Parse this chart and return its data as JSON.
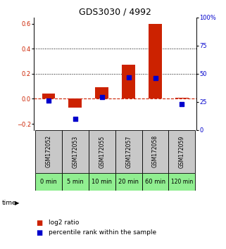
{
  "title": "GDS3030 / 4992",
  "samples": [
    "GSM172052",
    "GSM172053",
    "GSM172055",
    "GSM172057",
    "GSM172058",
    "GSM172059"
  ],
  "time_labels": [
    "0 min",
    "5 min",
    "10 min",
    "20 min",
    "60 min",
    "120 min"
  ],
  "log2_ratio": [
    0.04,
    -0.07,
    0.09,
    0.27,
    0.6,
    0.01
  ],
  "percentile_rank_pct": [
    26,
    10,
    29,
    47,
    46,
    23
  ],
  "ylim_left": [
    -0.25,
    0.65
  ],
  "ylim_right": [
    0,
    100
  ],
  "yticks_left": [
    -0.2,
    0.0,
    0.2,
    0.4,
    0.6
  ],
  "yticks_right": [
    0,
    25,
    50,
    75,
    100
  ],
  "ytick_labels_right": [
    "0",
    "25",
    "50",
    "75",
    "100%"
  ],
  "bar_color": "#cc2200",
  "dot_color": "#0000cc",
  "zero_line_color": "#cc2200",
  "bg_color": "#ffffff",
  "title_fontsize": 9,
  "tick_fontsize": 6,
  "green_color": "#90ee90",
  "sample_box_color": "#c8c8c8",
  "bar_width": 0.5,
  "dot_size": 18
}
